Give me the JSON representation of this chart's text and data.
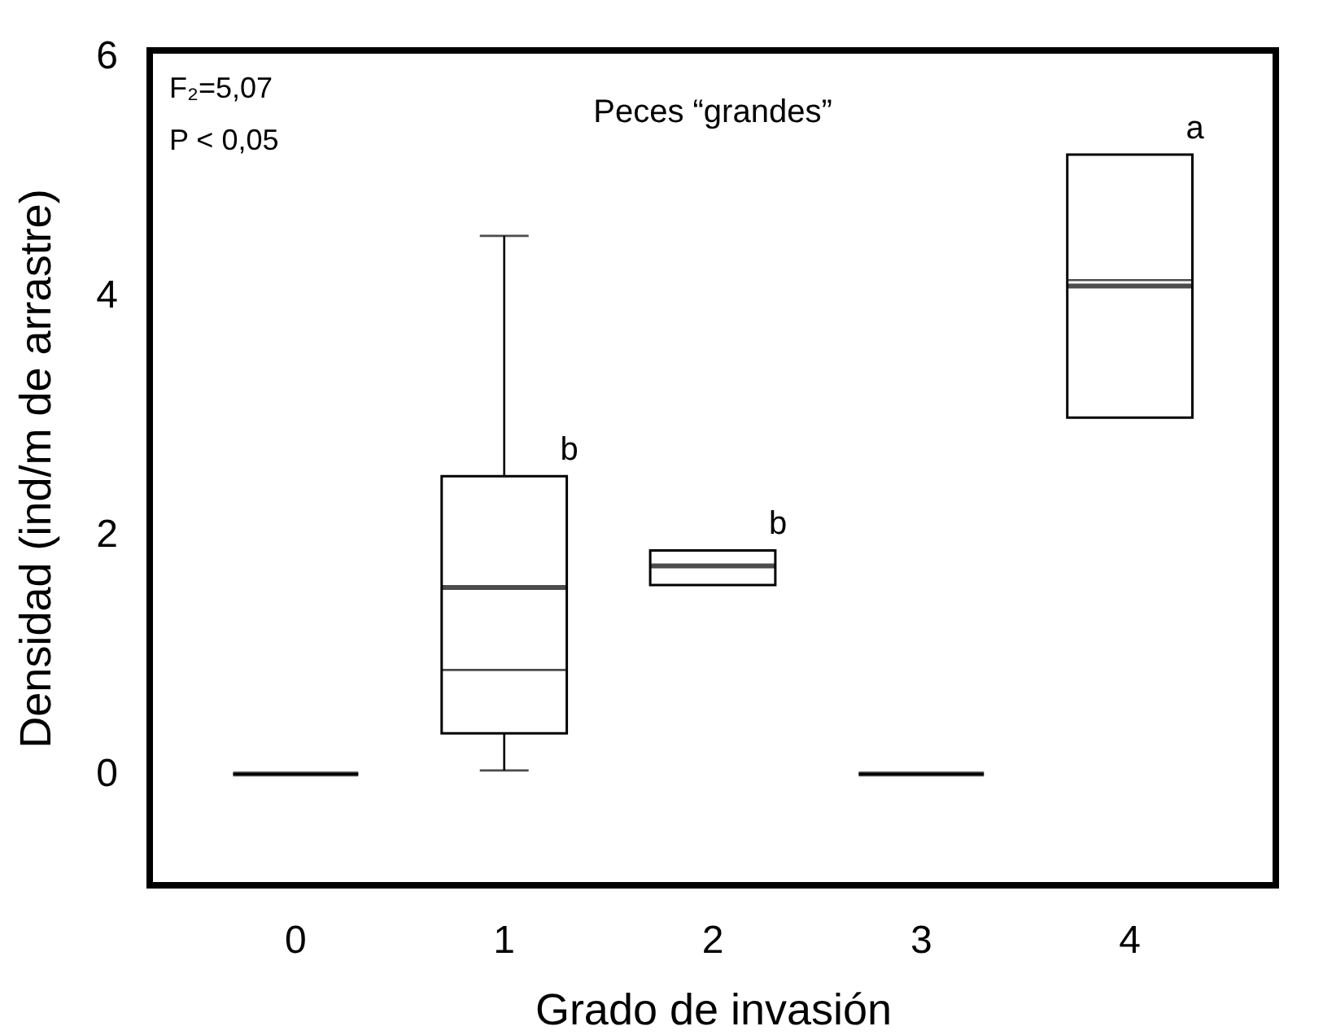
{
  "chart_data": {
    "type": "box",
    "title": "Peces “grandes”",
    "xlabel": "Grado de invasión",
    "ylabel": "Densidad (ind/m de arrastre)",
    "categories": [
      "0",
      "1",
      "2",
      "3",
      "4"
    ],
    "boxes": [
      {
        "low": 0,
        "q1": 0,
        "median": 0,
        "q3": 0,
        "high": 0
      },
      {
        "low": 0.03,
        "q1": 0.34,
        "median": 1.56,
        "q3": 2.49,
        "high": 4.5,
        "mean": 0.87
      },
      {
        "low": 1.58,
        "q1": 1.58,
        "median": 1.74,
        "q3": 1.87,
        "high": 1.87
      },
      {
        "low": 0,
        "q1": 0,
        "median": 0,
        "q3": 0,
        "high": 0
      },
      {
        "low": 2.98,
        "q1": 2.98,
        "median": 4.08,
        "q3": 5.18,
        "high": 5.18,
        "mean": 4.13
      }
    ],
    "color": "#000000",
    "ylim": [
      -0.93,
      6.05
    ],
    "yticks": [
      0,
      2,
      4,
      6
    ],
    "annotations": [
      "F₂=5,07",
      "P < 0,05",
      {
        "text": "b",
        "x": "1",
        "y": 2.49
      },
      {
        "text": "b",
        "x": "2",
        "y": 1.87
      },
      {
        "text": "a",
        "x": "4",
        "y": 5.18
      }
    ]
  }
}
